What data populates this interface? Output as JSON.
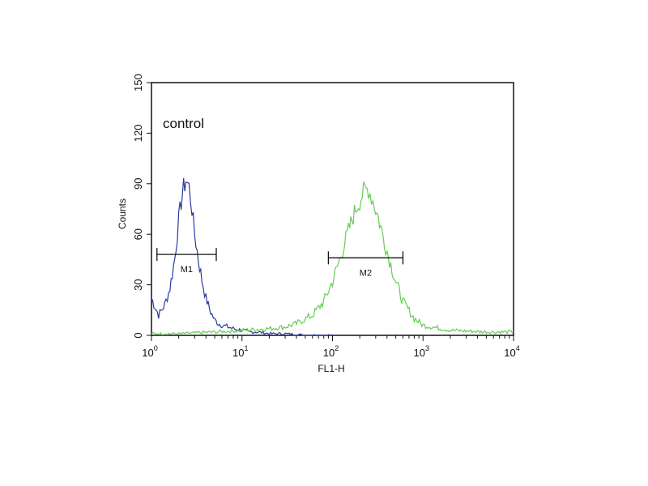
{
  "chart_data": {
    "type": "line",
    "title": "",
    "annotation": "control",
    "xlabel": "FL1-H",
    "ylabel": "Counts",
    "xscale": "log",
    "xlim": [
      1,
      10000
    ],
    "ylim": [
      0,
      150
    ],
    "x_ticks": [
      {
        "base": "10",
        "exp": "0",
        "value": 1
      },
      {
        "base": "10",
        "exp": "1",
        "value": 10
      },
      {
        "base": "10",
        "exp": "2",
        "value": 100
      },
      {
        "base": "10",
        "exp": "3",
        "value": 1000
      },
      {
        "base": "10",
        "exp": "4",
        "value": 10000
      }
    ],
    "y_ticks": [
      "0",
      "30",
      "60",
      "90",
      "120",
      "150"
    ],
    "grid": false,
    "series": [
      {
        "color": "#2b3a9c",
        "x": [
          1.0,
          1.2,
          1.4,
          1.6,
          1.8,
          2.0,
          2.2,
          2.4,
          2.6,
          2.8,
          3.0,
          3.3,
          3.6,
          4.0,
          4.5,
          5.0,
          5.5,
          6.0,
          7.0,
          8.0,
          10,
          12,
          15,
          20,
          30,
          50,
          80,
          100
        ],
        "y": [
          22,
          12,
          18,
          28,
          45,
          68,
          85,
          92,
          88,
          75,
          60,
          45,
          33,
          22,
          14,
          9,
          7,
          6,
          5,
          4,
          3,
          2,
          2,
          1,
          1,
          0,
          0,
          0
        ]
      },
      {
        "color": "#66cc55",
        "x": [
          1,
          2,
          5,
          10,
          20,
          30,
          40,
          60,
          80,
          100,
          120,
          150,
          180,
          200,
          220,
          250,
          280,
          320,
          400,
          500,
          600,
          800,
          1000,
          2000,
          5000,
          10000
        ],
        "y": [
          1,
          1,
          2,
          3,
          4,
          5,
          7,
          12,
          20,
          32,
          45,
          62,
          75,
          80,
          85,
          87,
          80,
          70,
          50,
          32,
          20,
          10,
          6,
          3,
          2,
          2
        ]
      }
    ],
    "markers": [
      {
        "label": "M1",
        "x_start": 1.15,
        "x_end": 5.2,
        "y": 48
      },
      {
        "label": "M2",
        "x_start": 90,
        "x_end": 600,
        "y": 46
      }
    ]
  }
}
